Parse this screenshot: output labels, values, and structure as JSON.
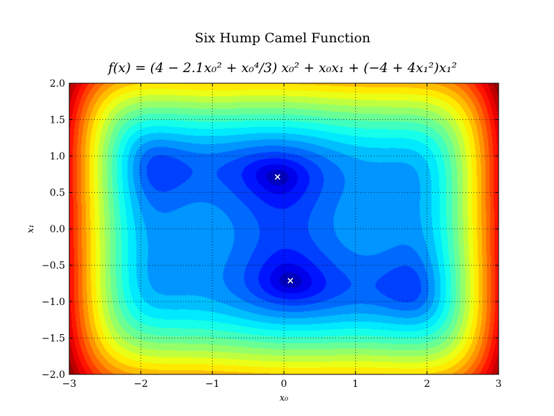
{
  "chart_data": {
    "type": "heatmap",
    "title": "Six Hump Camel Function",
    "subtitle": "f(x) = (4 − 2.1x₀² + x₀⁴/3) x₀² + x₀x₁ + (−4 + 4x₁²)x₁²",
    "xlabel": "x₀",
    "ylabel": "x₁",
    "xlim": [
      -3,
      3
    ],
    "ylim": [
      -2,
      2
    ],
    "x_ticks": [
      -3,
      -2,
      -1,
      0,
      1,
      2,
      3
    ],
    "x_tick_labels": [
      "−3",
      "−2",
      "−1",
      "0",
      "1",
      "2",
      "3"
    ],
    "y_ticks": [
      -2.0,
      -1.5,
      -1.0,
      -0.5,
      0.0,
      0.5,
      1.0,
      1.5,
      2.0
    ],
    "y_tick_labels": [
      "−2.0",
      "−1.5",
      "−1.0",
      "−0.5",
      "0.0",
      "0.5",
      "1.0",
      "1.5",
      "2.0"
    ],
    "grid": true,
    "grid_style": "dotted",
    "colormap": "jet",
    "contour_levels": 24,
    "function": "six_hump_camel",
    "minima": [
      {
        "x0": -0.0898,
        "x1": 0.7126
      },
      {
        "x0": 0.0898,
        "x1": -0.7126
      }
    ],
    "minima_marker": "x",
    "minima_color": "#ffffff"
  }
}
